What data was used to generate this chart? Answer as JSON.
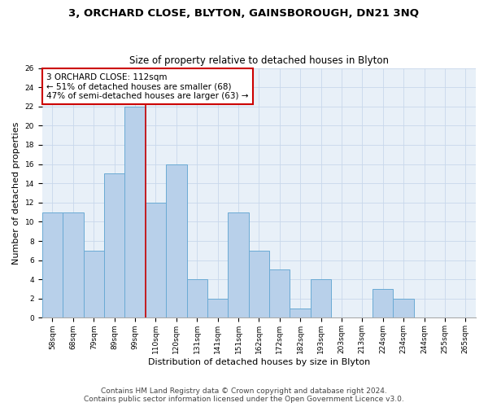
{
  "title": "3, ORCHARD CLOSE, BLYTON, GAINSBOROUGH, DN21 3NQ",
  "subtitle": "Size of property relative to detached houses in Blyton",
  "xlabel": "Distribution of detached houses by size in Blyton",
  "ylabel": "Number of detached properties",
  "bar_labels": [
    "58sqm",
    "68sqm",
    "79sqm",
    "89sqm",
    "99sqm",
    "110sqm",
    "120sqm",
    "131sqm",
    "141sqm",
    "151sqm",
    "162sqm",
    "172sqm",
    "182sqm",
    "193sqm",
    "203sqm",
    "213sqm",
    "224sqm",
    "234sqm",
    "244sqm",
    "255sqm",
    "265sqm"
  ],
  "bar_values": [
    11,
    11,
    7,
    15,
    22,
    12,
    16,
    4,
    2,
    11,
    7,
    5,
    1,
    4,
    0,
    0,
    3,
    2,
    0,
    0,
    0
  ],
  "bar_color": "#b8d0ea",
  "bar_edge_color": "#6aaad4",
  "highlight_line_label": "3 ORCHARD CLOSE: 112sqm",
  "annotation_line1": "← 51% of detached houses are smaller (68)",
  "annotation_line2": "47% of semi-detached houses are larger (63) →",
  "annotation_box_color": "#ffffff",
  "annotation_box_edge_color": "#cc0000",
  "vline_color": "#cc0000",
  "ylim": [
    0,
    26
  ],
  "yticks": [
    0,
    2,
    4,
    6,
    8,
    10,
    12,
    14,
    16,
    18,
    20,
    22,
    24,
    26
  ],
  "grid_color": "#c8d8eb",
  "bg_color": "#e8f0f8",
  "footer1": "Contains HM Land Registry data © Crown copyright and database right 2024.",
  "footer2": "Contains public sector information licensed under the Open Government Licence v3.0.",
  "title_fontsize": 9.5,
  "subtitle_fontsize": 8.5,
  "ylabel_fontsize": 8,
  "xlabel_fontsize": 8,
  "tick_fontsize": 6.5,
  "annot_fontsize": 7.5,
  "footer_fontsize": 6.5
}
